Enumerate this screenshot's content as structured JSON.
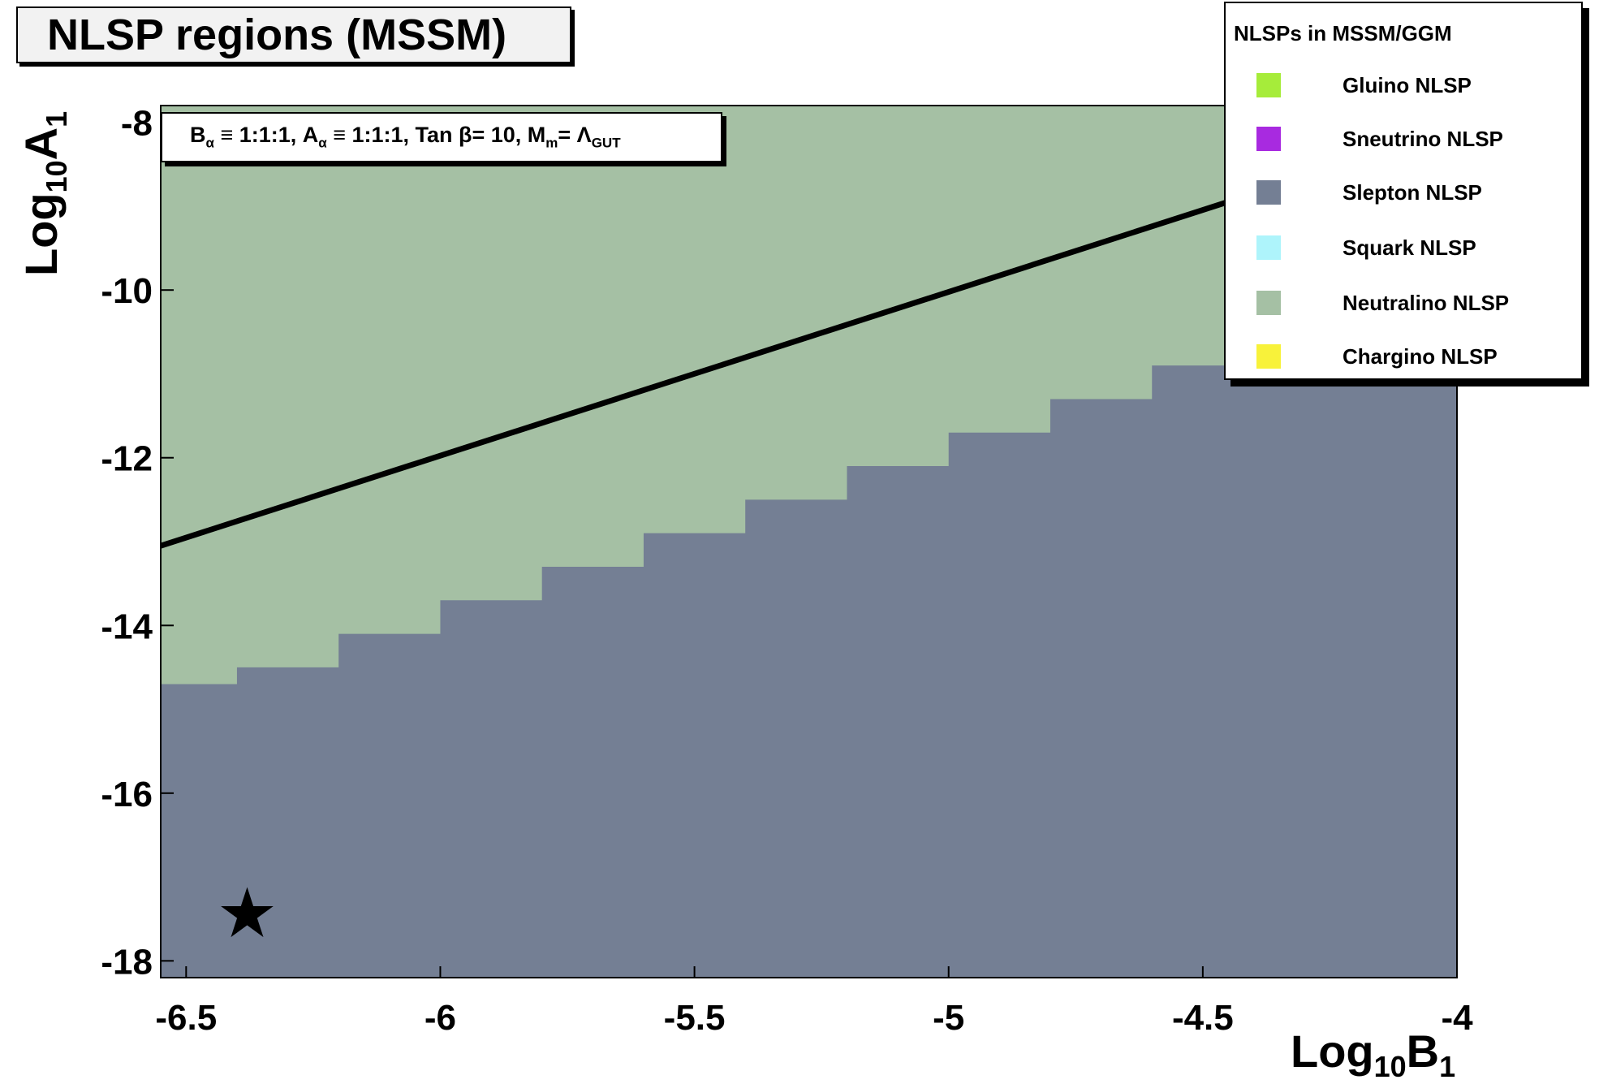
{
  "title": "NLSP regions (MSSM)",
  "params": {
    "b": "B",
    "b_sub": "α",
    "eq1": " ≡ 1:1:1, A",
    "a_sub": "α",
    "eq2": " ≡ 1:1:1, Tan β= 10, M",
    "m_sub": "m",
    "eq3": "= Λ",
    "gut_sub": "GUT"
  },
  "legend": {
    "title": "NLSPs in MSSM/GGM",
    "items": [
      {
        "label": "Gluino NLSP",
        "color": "#a6ec3a"
      },
      {
        "label": "Sneutrino NLSP",
        "color": "#a82ae0"
      },
      {
        "label": "Slepton NLSP",
        "color": "#747f94"
      },
      {
        "label": "Squark NLSP",
        "color": "#aef4fb"
      },
      {
        "label": "Neutralino NLSP",
        "color": "#a5c0a4"
      },
      {
        "label": "Chargino NLSP",
        "color": "#f8f23a"
      }
    ]
  },
  "xaxis_title": {
    "main": "Log",
    "sub": "10",
    "var": "B",
    "var_sub": "1"
  },
  "yaxis_title": {
    "main": "Log",
    "sub": "10",
    "var": "A",
    "var_sub": "1"
  },
  "chart_data": {
    "type": "heatmap",
    "title": "NLSP regions (MSSM)",
    "xlim": [
      -6.55,
      -4.0
    ],
    "ylim": [
      -18.2,
      -7.8
    ],
    "x_ticks": [
      -6.5,
      -6,
      -5.5,
      -5,
      -4.5,
      -4
    ],
    "x_tick_labels": [
      "-6.5",
      "-6",
      "-5.5",
      "-5",
      "-4.5",
      "-4"
    ],
    "y_ticks": [
      -8,
      -10,
      -12,
      -14,
      -16,
      -18
    ],
    "y_tick_labels": [
      "-8",
      "-10",
      "-12",
      "-14",
      "-16",
      "-18"
    ],
    "regions": [
      {
        "name": "Neutralino NLSP",
        "color": "#a5c0a4",
        "description_bounds": "above boundary"
      },
      {
        "name": "Slepton NLSP",
        "color": "#747f94",
        "description_bounds": "below boundary"
      }
    ],
    "boundary": {
      "x": [
        -6.55,
        -6.4,
        -6.2,
        -6.0,
        -5.8,
        -5.6,
        -5.4,
        -5.2,
        -5.0,
        -4.8,
        -4.6,
        -4.4,
        -4.2,
        -4.0
      ],
      "y": [
        -14.7,
        -14.5,
        -14.1,
        -13.7,
        -13.3,
        -12.9,
        -12.5,
        -12.1,
        -11.7,
        -11.3,
        -10.9,
        -10.5,
        -10.2,
        -10.0
      ]
    },
    "line": {
      "x": [
        -6.55,
        -4.4
      ],
      "y": [
        -13.05,
        -8.85
      ],
      "color": "#000000"
    },
    "marker": {
      "type": "star",
      "x": [
        -6.38
      ],
      "y": [
        -17.45
      ]
    }
  }
}
